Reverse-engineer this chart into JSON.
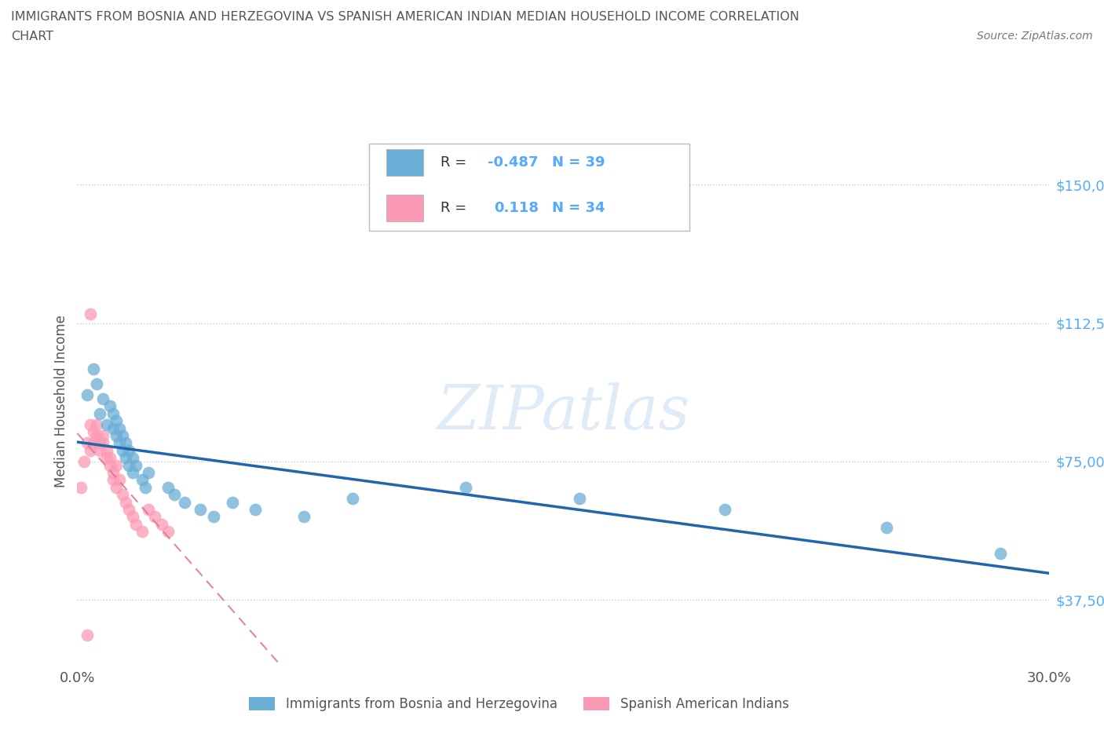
{
  "title_line1": "IMMIGRANTS FROM BOSNIA AND HERZEGOVINA VS SPANISH AMERICAN INDIAN MEDIAN HOUSEHOLD INCOME CORRELATION",
  "title_line2": "CHART",
  "source": "Source: ZipAtlas.com",
  "ylabel": "Median Household Income",
  "xlim": [
    0.0,
    0.3
  ],
  "ylim": [
    20000,
    162500
  ],
  "yticks": [
    37500,
    75000,
    112500,
    150000
  ],
  "ytick_labels": [
    "$37,500",
    "$75,000",
    "$112,500",
    "$150,000"
  ],
  "xticks": [
    0.0,
    0.05,
    0.1,
    0.15,
    0.2,
    0.25,
    0.3
  ],
  "xtick_labels": [
    "0.0%",
    "",
    "",
    "",
    "",
    "",
    "30.0%"
  ],
  "legend_r_bosnia": "-0.487",
  "legend_n_bosnia": "39",
  "legend_r_spanish": "0.118",
  "legend_n_spanish": "34",
  "color_bosnia": "#6baed6",
  "color_spanish": "#fb9ab4",
  "color_trendline_bosnia": "#2166ac",
  "color_trendline_spanish": "#e07090",
  "watermark": "ZIPatlas",
  "bosnia_x": [
    0.003,
    0.005,
    0.006,
    0.007,
    0.008,
    0.009,
    0.01,
    0.011,
    0.011,
    0.012,
    0.012,
    0.013,
    0.013,
    0.014,
    0.014,
    0.015,
    0.015,
    0.016,
    0.016,
    0.017,
    0.017,
    0.018,
    0.02,
    0.021,
    0.022,
    0.028,
    0.03,
    0.033,
    0.038,
    0.042,
    0.048,
    0.055,
    0.07,
    0.085,
    0.12,
    0.155,
    0.2,
    0.25,
    0.285
  ],
  "bosnia_y": [
    93000,
    100000,
    96000,
    88000,
    92000,
    85000,
    90000,
    88000,
    84000,
    86000,
    82000,
    84000,
    80000,
    82000,
    78000,
    80000,
    76000,
    78000,
    74000,
    76000,
    72000,
    74000,
    70000,
    68000,
    72000,
    68000,
    66000,
    64000,
    62000,
    60000,
    64000,
    62000,
    60000,
    65000,
    68000,
    65000,
    62000,
    57000,
    50000
  ],
  "spanish_x": [
    0.001,
    0.002,
    0.003,
    0.004,
    0.004,
    0.005,
    0.005,
    0.006,
    0.006,
    0.007,
    0.007,
    0.008,
    0.008,
    0.009,
    0.009,
    0.01,
    0.01,
    0.011,
    0.011,
    0.012,
    0.012,
    0.013,
    0.014,
    0.015,
    0.016,
    0.017,
    0.018,
    0.02,
    0.022,
    0.024,
    0.026,
    0.028,
    0.004,
    0.003
  ],
  "spanish_y": [
    68000,
    75000,
    80000,
    85000,
    78000,
    83000,
    80000,
    85000,
    82000,
    80000,
    78000,
    82000,
    80000,
    76000,
    78000,
    74000,
    76000,
    72000,
    70000,
    74000,
    68000,
    70000,
    66000,
    64000,
    62000,
    60000,
    58000,
    56000,
    62000,
    60000,
    58000,
    56000,
    115000,
    28000
  ],
  "background_color": "#ffffff",
  "grid_color": "#cccccc"
}
